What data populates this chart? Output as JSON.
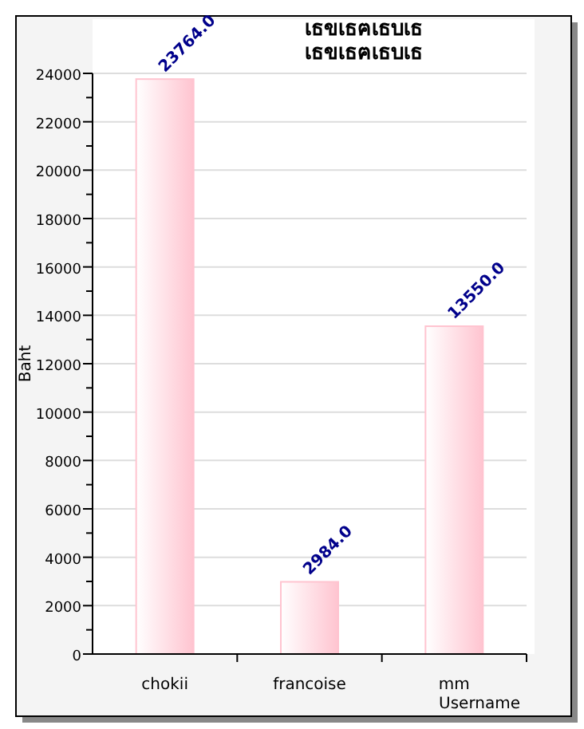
{
  "chart_data": {
    "type": "bar",
    "title": "เธขเธฅเธบเธ\nเธขเธฅเธบเธ",
    "xlabel": "Username",
    "ylabel": "Baht",
    "categories": [
      "chokii",
      "francoise",
      "mm"
    ],
    "values": [
      23764.0,
      2984.0,
      13550.0
    ],
    "value_labels": [
      "23764.0",
      "2984.0",
      "13550.0"
    ],
    "color": "#ffc4d0",
    "ylim": [
      0,
      24000
    ],
    "yticks": [
      0,
      {
        "value": 1000,
        "label": null
      },
      2000,
      {
        "value": 3000,
        "label": null
      },
      4000,
      {
        "value": 5000,
        "label": null
      },
      6000,
      {
        "value": 7000,
        "label": null
      },
      8000,
      {
        "value": 9000,
        "label": null
      },
      10000,
      {
        "value": 11000,
        "label": null
      },
      12000,
      {
        "value": 13000,
        "label": null
      },
      14000,
      {
        "value": 15000,
        "label": null
      },
      16000,
      {
        "value": 17000,
        "label": null
      },
      18000,
      {
        "value": 19000,
        "label": null
      },
      20000,
      {
        "value": 21000,
        "label": null
      },
      22000,
      {
        "value": 23000,
        "label": null
      },
      24000
    ],
    "grid": "y"
  }
}
